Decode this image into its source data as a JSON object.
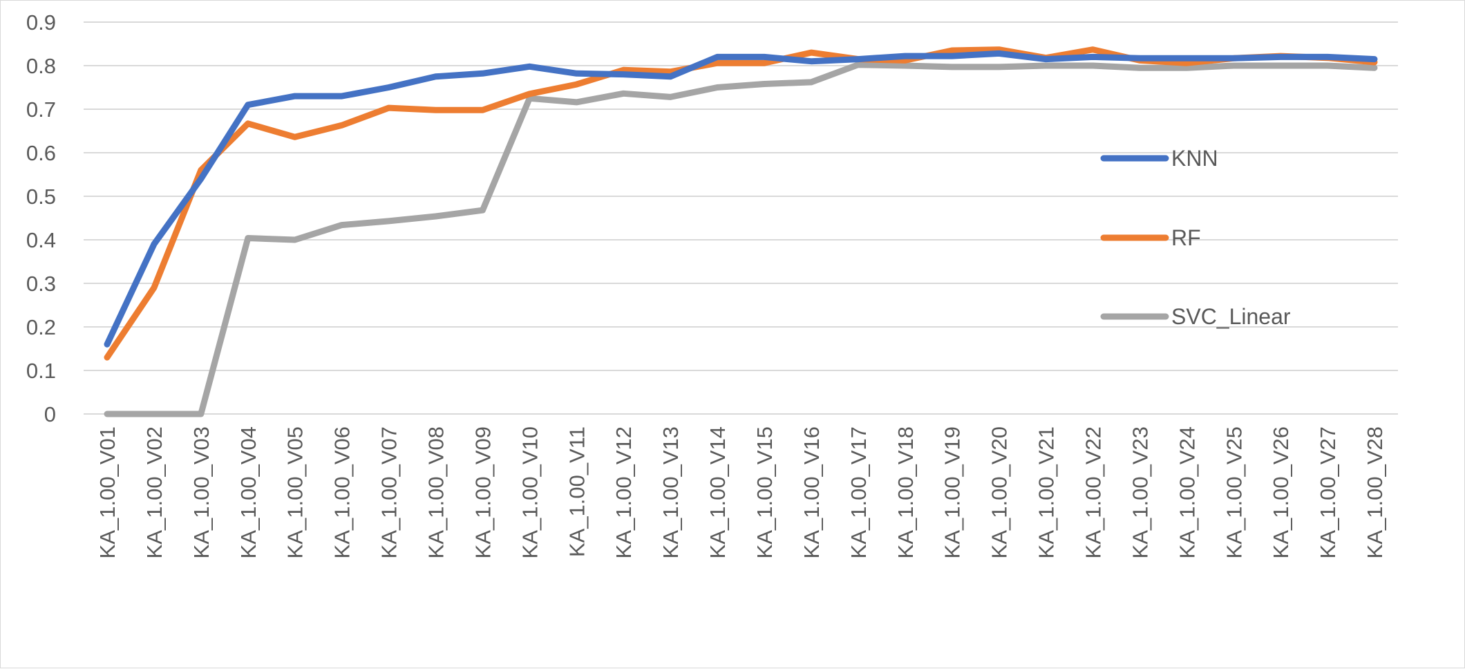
{
  "chart_data": {
    "type": "line",
    "title": "",
    "xlabel": "",
    "ylabel": "",
    "ylim": [
      0,
      0.9
    ],
    "yticks": [
      0,
      0.1,
      0.2,
      0.3,
      0.4,
      0.5,
      0.6,
      0.7,
      0.8,
      0.9
    ],
    "grid": true,
    "legend_position": "right",
    "categories": [
      "KA_1.00_V01",
      "KA_1.00_V02",
      "KA_1.00_V03",
      "KA_1.00_V04",
      "KA_1.00_V05",
      "KA_1.00_V06",
      "KA_1.00_V07",
      "KA_1.00_V08",
      "KA_1.00_V09",
      "KA_1.00_V10",
      "KA_1.00_V11",
      "KA_1.00_V12",
      "KA_1.00_V13",
      "KA_1.00_V14",
      "KA_1.00_V15",
      "KA_1.00_V16",
      "KA_1.00_V17",
      "KA_1.00_V18",
      "KA_1.00_V19",
      "KA_1.00_V20",
      "KA_1.00_V21",
      "KA_1.00_V22",
      "KA_1.00_V23",
      "KA_1.00_V24",
      "KA_1.00_V25",
      "KA_1.00_V26",
      "KA_1.00_V27",
      "KA_1.00_V28"
    ],
    "series": [
      {
        "name": "KNN",
        "color": "#4472c4",
        "values": [
          0.16,
          0.39,
          0.54,
          0.71,
          0.73,
          0.73,
          0.75,
          0.775,
          0.782,
          0.798,
          0.782,
          0.78,
          0.775,
          0.82,
          0.82,
          0.81,
          0.815,
          0.822,
          0.822,
          0.828,
          0.815,
          0.82,
          0.817,
          0.817,
          0.817,
          0.82,
          0.82,
          0.815
        ]
      },
      {
        "name": "RF",
        "color": "#ed7d31",
        "values": [
          0.13,
          0.29,
          0.56,
          0.667,
          0.636,
          0.663,
          0.703,
          0.698,
          0.698,
          0.735,
          0.757,
          0.79,
          0.786,
          0.806,
          0.806,
          0.83,
          0.815,
          0.812,
          0.835,
          0.837,
          0.818,
          0.837,
          0.812,
          0.806,
          0.817,
          0.822,
          0.818,
          0.808
        ]
      },
      {
        "name": "SVC_Linear",
        "color": "#a5a5a5",
        "values": [
          0,
          0,
          0,
          0.404,
          0.4,
          0.434,
          0.443,
          0.454,
          0.468,
          0.725,
          0.716,
          0.736,
          0.728,
          0.75,
          0.758,
          0.762,
          0.802,
          0.8,
          0.797,
          0.797,
          0.8,
          0.8,
          0.795,
          0.795,
          0.8,
          0.8,
          0.8,
          0.795
        ]
      }
    ]
  }
}
